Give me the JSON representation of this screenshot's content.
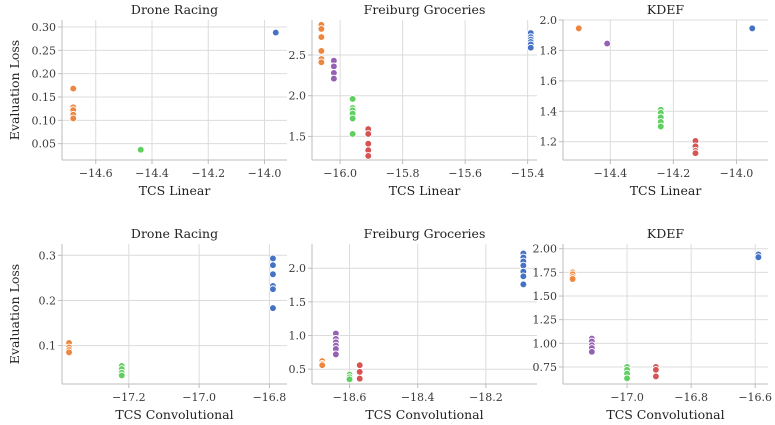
{
  "colors": {
    "blue": "#4472c4",
    "orange": "#ee8640",
    "green": "#5fcf5f",
    "red": "#d65454",
    "purple": "#9461b5"
  },
  "chart_data": [
    {
      "type": "scatter",
      "title": "Drone Racing",
      "xlabel": "TCS Linear",
      "ylabel": "Evaluation Loss",
      "xlim": [
        -14.72,
        -13.92
      ],
      "ylim": [
        0.015,
        0.315
      ],
      "xticks": [
        -14.6,
        -14.4,
        -14.2,
        -14.0
      ],
      "yticks": [
        0.05,
        0.1,
        0.15,
        0.2,
        0.25,
        0.3
      ],
      "xtick_labels": [
        "−14.6",
        "−14.4",
        "−14.2",
        "−14.0"
      ],
      "ytick_labels": [
        "0.05",
        "0.10",
        "0.15",
        "0.20",
        "0.25",
        "0.30"
      ],
      "grid": true,
      "series": [
        {
          "color": "orange",
          "x": -14.68,
          "y": [
            0.168,
            0.128,
            0.122,
            0.112,
            0.104
          ]
        },
        {
          "color": "green",
          "x": -14.44,
          "y": [
            0.037
          ]
        },
        {
          "color": "blue",
          "x": -13.96,
          "y": [
            0.288
          ]
        }
      ]
    },
    {
      "type": "scatter",
      "title": "Freiburg Groceries",
      "xlabel": "TCS Linear",
      "ylabel": "",
      "xlim": [
        -16.09,
        -15.37
      ],
      "ylim": [
        1.21,
        2.93
      ],
      "xticks": [
        -16.0,
        -15.8,
        -15.6,
        -15.4
      ],
      "yticks": [
        1.5,
        2.0,
        2.5
      ],
      "xtick_labels": [
        "−16.0",
        "−15.8",
        "−15.6",
        "−15.4"
      ],
      "ytick_labels": [
        "1.5",
        "2.0",
        "2.5"
      ],
      "grid": true,
      "series": [
        {
          "color": "orange",
          "x": -16.06,
          "y": [
            2.87,
            2.82,
            2.72,
            2.55,
            2.45,
            2.41
          ]
        },
        {
          "color": "purple",
          "x": -16.02,
          "y": [
            2.43,
            2.36,
            2.28,
            2.21
          ]
        },
        {
          "color": "green",
          "x": -15.96,
          "y": [
            1.96,
            1.85,
            1.82,
            1.78,
            1.72,
            1.53
          ]
        },
        {
          "color": "red",
          "x": -15.91,
          "y": [
            1.59,
            1.53,
            1.41,
            1.33,
            1.26
          ]
        },
        {
          "color": "blue",
          "x": -15.39,
          "y": [
            2.77,
            2.72,
            2.69,
            2.66,
            2.63,
            2.59
          ]
        }
      ]
    },
    {
      "type": "scatter",
      "title": "KDEF",
      "xlabel": "TCS Linear",
      "ylabel": "",
      "xlim": [
        -14.55,
        -13.9
      ],
      "ylim": [
        1.08,
        2.0
      ],
      "xticks": [
        -14.4,
        -14.2,
        -14.0
      ],
      "yticks": [
        1.2,
        1.4,
        1.6,
        1.8,
        2.0
      ],
      "xtick_labels": [
        "−14.4",
        "−14.2",
        "−14.0"
      ],
      "ytick_labels": [
        "1.2",
        "1.4",
        "1.6",
        "1.8",
        "2.0"
      ],
      "grid": true,
      "series": [
        {
          "color": "orange",
          "x": -14.5,
          "y": [
            1.945
          ]
        },
        {
          "color": "purple",
          "x": -14.41,
          "y": [
            1.845
          ]
        },
        {
          "color": "green",
          "x": -14.24,
          "y": [
            1.41,
            1.39,
            1.36,
            1.33,
            1.3
          ]
        },
        {
          "color": "red",
          "x": -14.13,
          "y": [
            1.205,
            1.17,
            1.14,
            1.125
          ]
        },
        {
          "color": "blue",
          "x": -13.95,
          "y": [
            1.945
          ]
        }
      ]
    },
    {
      "type": "scatter",
      "title": "Drone Racing",
      "xlabel": "TCS Convolutional",
      "ylabel": "Evaluation Loss",
      "xlim": [
        -17.39,
        -16.75
      ],
      "ylim": [
        0.015,
        0.325
      ],
      "xticks": [
        -17.2,
        -17.0,
        -16.8
      ],
      "yticks": [
        0.1,
        0.2,
        0.3
      ],
      "xtick_labels": [
        "−17.2",
        "−17.0",
        "−16.8"
      ],
      "ytick_labels": [
        "0.1",
        "0.2",
        "0.3"
      ],
      "grid": true,
      "series": [
        {
          "color": "orange",
          "x": -17.37,
          "y": [
            0.106,
            0.096,
            0.09,
            0.085
          ]
        },
        {
          "color": "green",
          "x": -17.22,
          "y": [
            0.055,
            0.048,
            0.04,
            0.034
          ]
        },
        {
          "color": "blue",
          "x": -16.79,
          "y": [
            0.293,
            0.278,
            0.258,
            0.232,
            0.225,
            0.183
          ]
        }
      ]
    },
    {
      "type": "scatter",
      "title": "Freiburg Groceries",
      "xlabel": "TCS Convolutional",
      "ylabel": "",
      "xlim": [
        -18.71,
        -18.05
      ],
      "ylim": [
        0.28,
        2.36
      ],
      "xticks": [
        -18.6,
        -18.4,
        -18.2
      ],
      "yticks": [
        0.5,
        1.0,
        1.5,
        2.0
      ],
      "xtick_labels": [
        "−18.6",
        "−18.4",
        "−18.2"
      ],
      "ytick_labels": [
        "0.5",
        "1.0",
        "1.5",
        "2.0"
      ],
      "grid": true,
      "series": [
        {
          "color": "orange",
          "x": -18.68,
          "y": [
            0.62,
            0.58,
            0.56
          ]
        },
        {
          "color": "purple",
          "x": -18.64,
          "y": [
            1.03,
            0.95,
            0.9,
            0.85,
            0.8,
            0.72
          ]
        },
        {
          "color": "green",
          "x": -18.6,
          "y": [
            0.42,
            0.38,
            0.35
          ]
        },
        {
          "color": "red",
          "x": -18.57,
          "y": [
            0.56,
            0.46,
            0.36
          ]
        },
        {
          "color": "blue",
          "x": -18.09,
          "y": [
            2.22,
            2.16,
            2.1,
            2.04,
            1.95,
            1.88,
            1.76
          ]
        }
      ]
    },
    {
      "type": "scatter",
      "title": "KDEF",
      "xlabel": "TCS Convolutional",
      "ylabel": "",
      "xlim": [
        -17.2,
        -16.56
      ],
      "ylim": [
        0.57,
        2.05
      ],
      "xticks": [
        -17.0,
        -16.8,
        -16.6
      ],
      "yticks": [
        0.75,
        1.0,
        1.25,
        1.5,
        1.75,
        2.0
      ],
      "xtick_labels": [
        "−17.0",
        "−16.8",
        "−16.6"
      ],
      "ytick_labels": [
        "0.75",
        "1.00",
        "1.25",
        "1.50",
        "1.75",
        "2.00"
      ],
      "grid": true,
      "series": [
        {
          "color": "orange",
          "x": -17.17,
          "y": [
            1.75,
            1.73,
            1.7,
            1.68
          ]
        },
        {
          "color": "purple",
          "x": -17.11,
          "y": [
            1.05,
            1.02,
            0.98,
            0.95,
            0.91
          ]
        },
        {
          "color": "green",
          "x": -17.0,
          "y": [
            0.75,
            0.72,
            0.68,
            0.63
          ]
        },
        {
          "color": "red",
          "x": -16.91,
          "y": [
            0.75,
            0.72,
            0.65
          ]
        },
        {
          "color": "blue",
          "x": -16.59,
          "y": [
            1.94,
            1.91
          ]
        }
      ]
    }
  ]
}
